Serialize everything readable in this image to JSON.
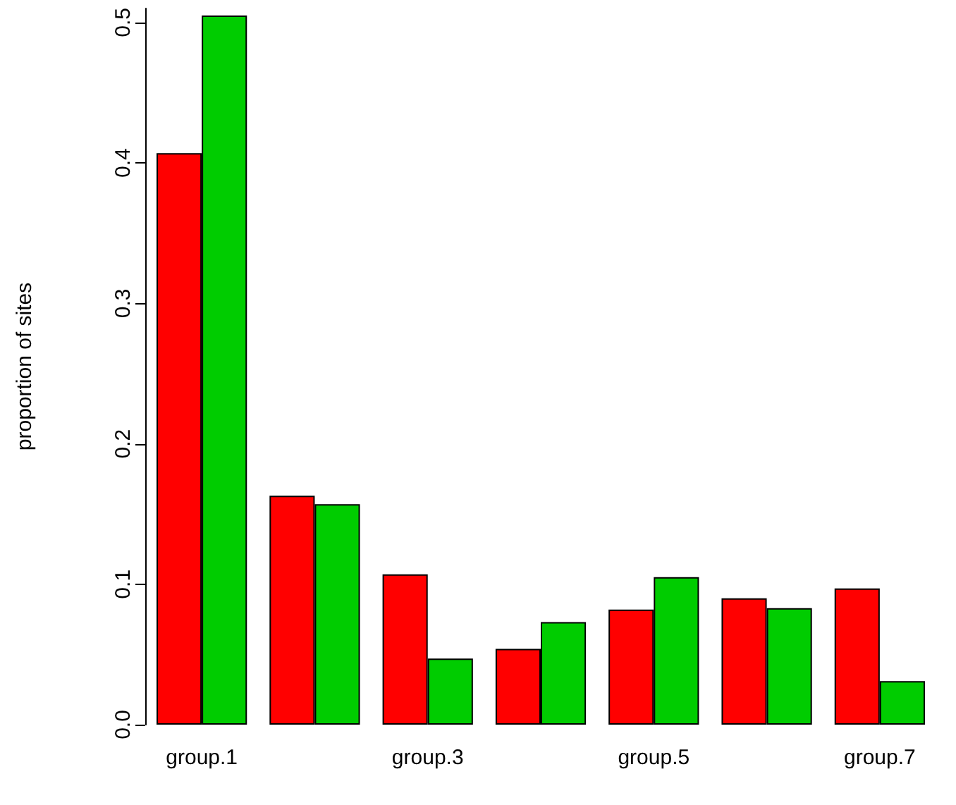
{
  "chart_data": {
    "type": "bar",
    "ylabel": "proportion of sites",
    "categories": [
      "group.1",
      null,
      "group.3",
      null,
      "group.5",
      null,
      "group.7"
    ],
    "series": [
      {
        "color": "#ff0000",
        "values": [
          0.407,
          0.163,
          0.107,
          0.054,
          0.082,
          0.09,
          0.097
        ]
      },
      {
        "color": "#00cc00",
        "values": [
          0.505,
          0.157,
          0.047,
          0.073,
          0.105,
          0.083,
          0.031
        ]
      }
    ],
    "ylim": [
      0,
      0.51
    ],
    "yticks": [
      {
        "value": 0,
        "label": "0.0"
      },
      {
        "value": 0.1,
        "label": "0.1"
      },
      {
        "value": 0.2,
        "label": "0.2"
      },
      {
        "value": 0.3,
        "label": "0.3"
      },
      {
        "value": 0.4,
        "label": "0.4"
      },
      {
        "value": 0.5,
        "label": "0.5"
      }
    ],
    "grid": false
  }
}
